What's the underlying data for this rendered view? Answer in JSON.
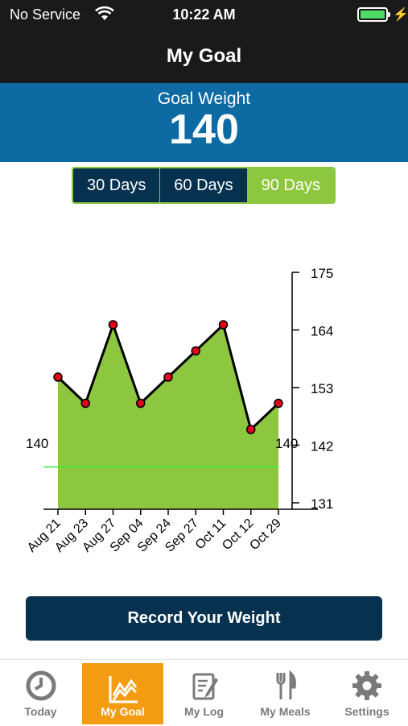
{
  "status_bar": {
    "carrier": "No Service",
    "time": "10:22 AM"
  },
  "nav": {
    "title": "My Goal"
  },
  "goal": {
    "label": "Goal Weight",
    "value": "140"
  },
  "period_selector": {
    "options": [
      "30 Days",
      "60 Days",
      "90 Days"
    ],
    "selected": "90 Days"
  },
  "chart_data": {
    "type": "area",
    "categories": [
      "Aug 21",
      "Aug 23",
      "Aug 27",
      "Sep 04",
      "Sep 24",
      "Sep 27",
      "Oct 11",
      "Oct 12",
      "Oct 29"
    ],
    "values": [
      155,
      150,
      165,
      150,
      155,
      160,
      165,
      145,
      150
    ],
    "yticks": [
      175,
      164,
      153,
      142,
      131
    ],
    "ylim": [
      131,
      175
    ],
    "goal_line": {
      "value": 140,
      "left_label": "140",
      "right_label": "140"
    },
    "colors": {
      "fill": "#8dc63f",
      "line": "#000000",
      "point": "#e3001b",
      "goal": "#33ee33"
    }
  },
  "record_button": {
    "label": "Record Your Weight"
  },
  "tabs": [
    {
      "label": "Today",
      "icon": "clock-icon"
    },
    {
      "label": "My Goal",
      "icon": "chart-icon"
    },
    {
      "label": "My Log",
      "icon": "notepad-icon"
    },
    {
      "label": "My Meals",
      "icon": "fork-knife-icon"
    },
    {
      "label": "Settings",
      "icon": "gear-icon"
    }
  ],
  "colors": {
    "header": "#1a1a1a",
    "banner": "#0d6aa3",
    "navy": "#06324f",
    "accent_green": "#8dc63f",
    "tab_active": "#f39c12"
  }
}
